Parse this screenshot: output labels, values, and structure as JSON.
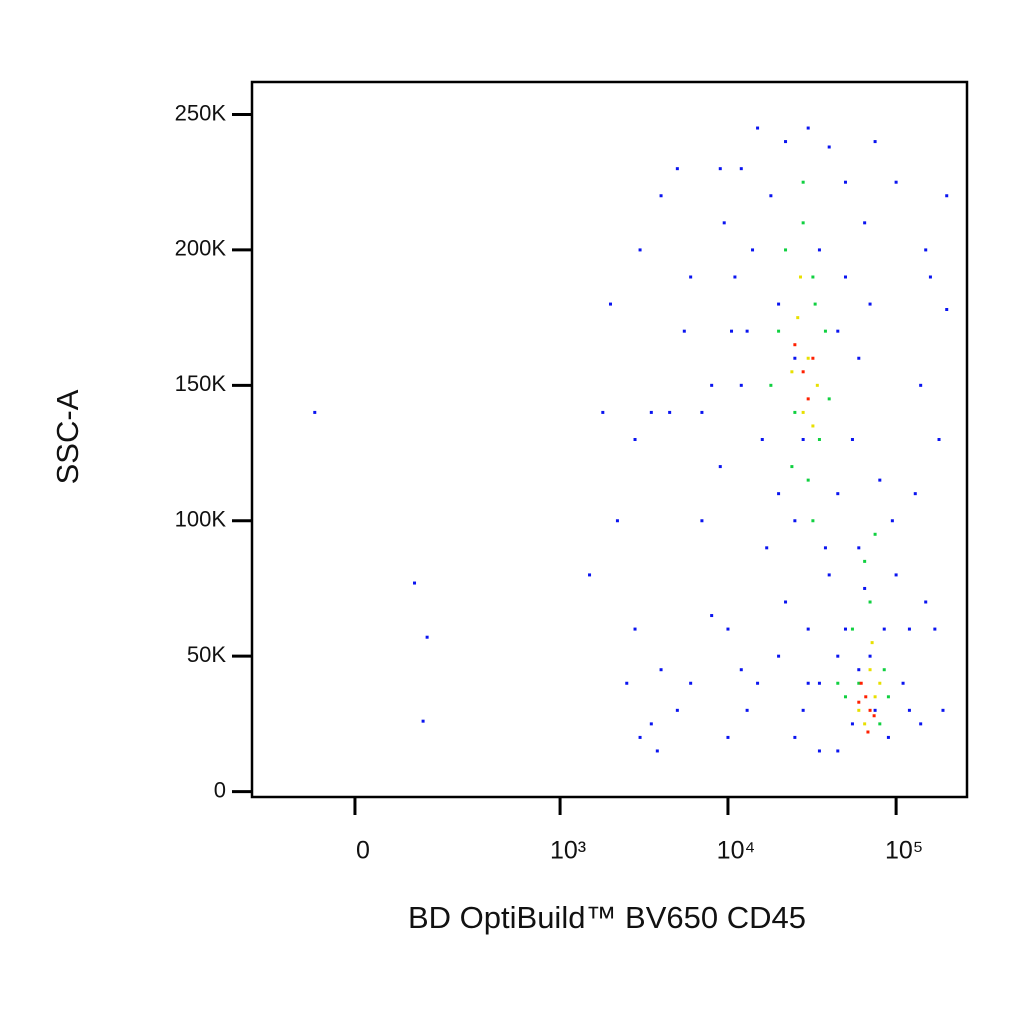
{
  "chart_data": {
    "type": "scatter",
    "x_label": "BD OptiBuild™ BV650 CD45",
    "y_label": "SSC-A",
    "xscale": "biexponential",
    "xlim": [
      -233,
      264000
    ],
    "ylim": [
      -2000,
      262000
    ],
    "xticks": [
      0,
      {
        "value": 1000,
        "label": "10³"
      },
      {
        "value": 10000,
        "label": "10⁴"
      },
      {
        "value": 100000,
        "label": "10⁵"
      }
    ],
    "yticks": [
      0,
      {
        "value": 50000,
        "label": "50K"
      },
      {
        "value": 100000,
        "label": "100K"
      },
      {
        "value": 150000,
        "label": "150K"
      },
      {
        "value": 200000,
        "label": "200K"
      },
      {
        "value": 250000,
        "label": "250K"
      }
    ],
    "series": [
      {
        "color": "#0a14f0",
        "x": [
          12000,
          15000,
          18000,
          22000,
          30000,
          40000,
          50000,
          14000,
          11000,
          13000,
          12000,
          16000,
          20000,
          25000,
          45000,
          55000,
          60000,
          50000,
          65000,
          70000,
          17000,
          22000,
          20000,
          15000,
          13000,
          25000,
          35000,
          45000,
          90000,
          110000,
          120000,
          100000,
          95000,
          80000,
          30000,
          40000,
          35000,
          28000,
          50000,
          70000,
          120000,
          140000,
          150000,
          130000,
          140000,
          150000,
          160000,
          100000,
          75000,
          9000,
          9500,
          10500,
          8000,
          9000,
          7000,
          8000,
          10000,
          12000,
          10000,
          6000,
          5000,
          4000,
          3500,
          3000,
          3800,
          2500,
          2200,
          1800,
          2000,
          3000,
          4000,
          5000,
          3500,
          2800,
          4500,
          1500,
          2800,
          5500,
          6000,
          7000,
          200000,
          200000,
          180000,
          190000,
          170000,
          -70,
          110,
          140,
          130,
          60000,
          45000,
          55000,
          75000,
          85000,
          25000,
          20000,
          35000,
          45000,
          28000,
          38000,
          30000,
          60000,
          65000
        ],
        "y": [
          230000,
          245000,
          220000,
          240000,
          245000,
          238000,
          225000,
          200000,
          190000,
          170000,
          150000,
          130000,
          110000,
          100000,
          110000,
          130000,
          160000,
          190000,
          210000,
          180000,
          90000,
          70000,
          50000,
          40000,
          30000,
          20000,
          15000,
          15000,
          20000,
          40000,
          60000,
          80000,
          100000,
          115000,
          60000,
          80000,
          40000,
          30000,
          60000,
          50000,
          30000,
          25000,
          70000,
          110000,
          150000,
          200000,
          190000,
          225000,
          240000,
          230000,
          210000,
          170000,
          150000,
          120000,
          100000,
          65000,
          60000,
          45000,
          20000,
          40000,
          30000,
          45000,
          25000,
          20000,
          15000,
          40000,
          100000,
          140000,
          180000,
          200000,
          220000,
          230000,
          140000,
          130000,
          140000,
          80000,
          60000,
          170000,
          190000,
          140000,
          220000,
          178000,
          130000,
          30000,
          60000,
          140000,
          77000,
          57000,
          26000,
          90000,
          50000,
          25000,
          30000,
          60000,
          160000,
          180000,
          200000,
          170000,
          130000,
          90000,
          40000,
          45000,
          75000
        ]
      },
      {
        "color": "#10d040",
        "x": [
          22000,
          28000,
          32000,
          20000,
          38000,
          25000,
          35000,
          30000,
          40000,
          18000,
          33000,
          24000,
          65000,
          75000,
          70000,
          60000,
          85000,
          50000,
          80000,
          55000,
          90000,
          45000,
          28000,
          32000
        ],
        "y": [
          200000,
          210000,
          190000,
          170000,
          170000,
          140000,
          130000,
          115000,
          145000,
          150000,
          180000,
          120000,
          85000,
          95000,
          70000,
          40000,
          45000,
          35000,
          25000,
          60000,
          35000,
          40000,
          225000,
          100000
        ]
      },
      {
        "color": "#e8e000",
        "x": [
          26000,
          30000,
          24000,
          34000,
          28000,
          32000,
          27000,
          70000,
          60000,
          75000,
          65000,
          80000,
          72000
        ],
        "y": [
          175000,
          160000,
          155000,
          150000,
          140000,
          135000,
          190000,
          45000,
          30000,
          35000,
          25000,
          40000,
          55000
        ]
      },
      {
        "color": "#ff2000",
        "x": [
          28000,
          30000,
          25000,
          32000,
          66000,
          70000,
          62000,
          74000,
          68000,
          60000
        ],
        "y": [
          155000,
          145000,
          165000,
          160000,
          35000,
          30000,
          40000,
          28000,
          22000,
          33000
        ]
      }
    ]
  }
}
